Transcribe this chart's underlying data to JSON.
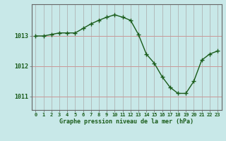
{
  "x": [
    0,
    1,
    2,
    3,
    4,
    5,
    6,
    7,
    8,
    9,
    10,
    11,
    12,
    13,
    14,
    15,
    16,
    17,
    18,
    19,
    20,
    21,
    22,
    23
  ],
  "y": [
    1013.0,
    1013.0,
    1013.05,
    1013.1,
    1013.1,
    1013.1,
    1013.25,
    1013.4,
    1013.52,
    1013.62,
    1013.7,
    1013.62,
    1013.52,
    1013.05,
    1012.4,
    1012.1,
    1011.65,
    1011.3,
    1011.1,
    1011.1,
    1011.5,
    1012.2,
    1012.4,
    1012.5
  ],
  "line_color": "#1a5c1a",
  "marker_color": "#1a5c1a",
  "bg_color": "#c8e8e8",
  "grid_color_v": "#aaaaaa",
  "grid_color_h": "#cc8888",
  "xlabel": "Graphe pression niveau de la mer (hPa)",
  "xlabel_color": "#1a5c1a",
  "ylabel_ticks": [
    1011,
    1012,
    1013
  ],
  "ylim": [
    1010.55,
    1014.05
  ],
  "xlim": [
    -0.5,
    23.5
  ],
  "tick_label_color": "#1a5c1a",
  "border_color": "#666666",
  "figsize": [
    3.2,
    2.0
  ],
  "dpi": 100
}
